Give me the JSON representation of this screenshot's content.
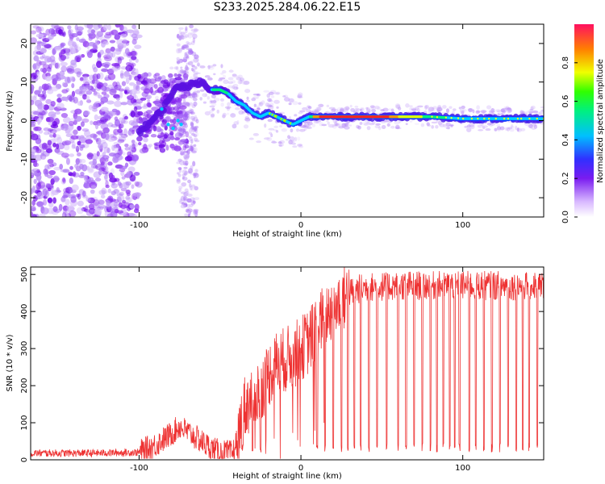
{
  "title": "S233.2025.284.06.22.E15",
  "chart_data": [
    {
      "id": "spectrogram",
      "type": "heatmap",
      "xlabel": "Height of straight line (km)",
      "ylabel": "Frequency (Hz)",
      "xlim": [
        -167,
        150
      ],
      "ylim": [
        -25,
        25
      ],
      "xticks": [
        -100,
        0,
        100
      ],
      "yticks": [
        -20,
        -10,
        0,
        10,
        20
      ],
      "colorbar": {
        "label": "Normalized spectral amplitude",
        "range": [
          0,
          1
        ],
        "ticks": [
          0.0,
          0.2,
          0.4,
          0.6,
          0.8
        ]
      },
      "ridge": {
        "x": [
          -100,
          -92,
          -85,
          -80,
          -75,
          -70,
          -62,
          -55,
          -50,
          -45,
          -40,
          -35,
          -30,
          -25,
          -20,
          -15,
          -10,
          -5,
          0,
          5,
          10,
          20,
          40,
          60,
          80,
          100,
          120,
          140,
          150
        ],
        "freq": [
          -3,
          0,
          3,
          7,
          9,
          9,
          10,
          8,
          8,
          7,
          5,
          4,
          2,
          1,
          2,
          1,
          0,
          -1,
          0,
          1,
          1,
          1,
          1,
          1,
          1,
          0.5,
          0.5,
          0.5,
          0.5
        ]
      }
    },
    {
      "id": "snr",
      "type": "line",
      "xlabel": "Height of straight line (km)",
      "ylabel": "SNR (10 * v/v)",
      "xlim": [
        -167,
        150
      ],
      "ylim": [
        0,
        520
      ],
      "xticks": [
        -100,
        0,
        100
      ],
      "yticks": [
        0,
        100,
        200,
        300,
        400,
        500
      ],
      "color": "#ee3333",
      "envelope": {
        "x": [
          -167,
          -130,
          -100,
          -90,
          -80,
          -75,
          -65,
          -55,
          -50,
          -42,
          -38,
          -35,
          -30,
          -25,
          -20,
          -15,
          -10,
          -5,
          0,
          5,
          10,
          15,
          20,
          25,
          30,
          35,
          40,
          60,
          80,
          100,
          120,
          140,
          150
        ],
        "y": [
          18,
          18,
          20,
          40,
          70,
          90,
          60,
          30,
          20,
          18,
          80,
          140,
          170,
          190,
          230,
          260,
          270,
          280,
          300,
          320,
          360,
          390,
          410,
          430,
          450,
          460,
          465,
          470,
          470,
          470,
          470,
          470,
          470
        ]
      },
      "dropouts_x": [
        -36,
        -30,
        -25,
        10,
        15,
        20,
        25,
        29,
        33,
        37,
        42,
        47,
        53,
        60,
        65,
        70,
        75,
        80,
        84,
        88,
        92,
        95,
        98,
        104,
        108,
        113,
        118,
        123,
        128,
        133,
        137,
        141,
        146
      ]
    }
  ]
}
